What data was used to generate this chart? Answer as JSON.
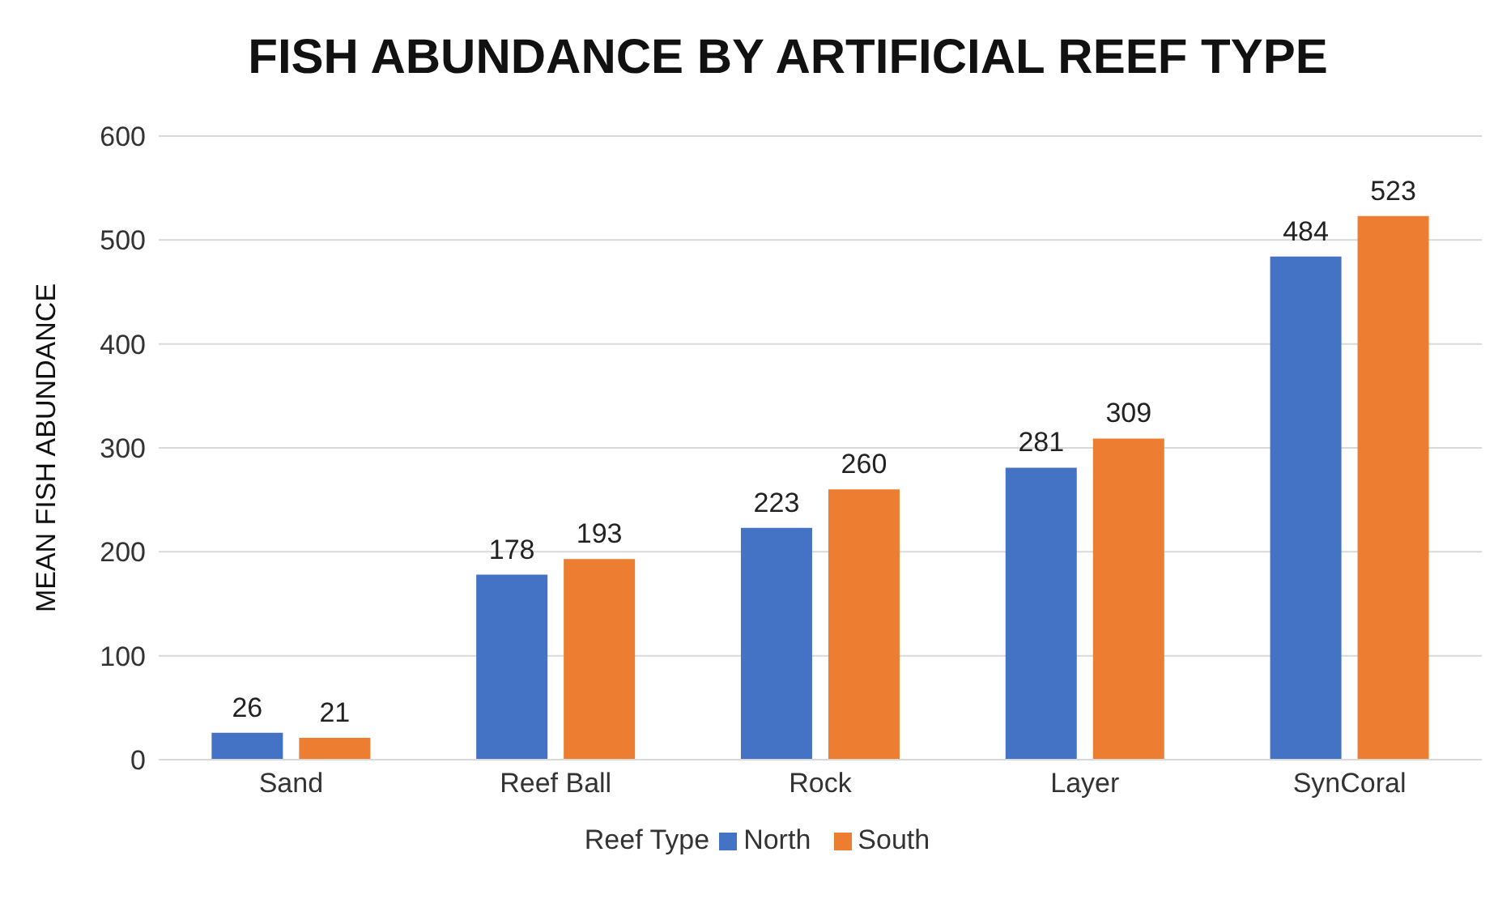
{
  "chart_data": {
    "type": "bar",
    "title": "FISH ABUNDANCE BY ARTIFICIAL REEF TYPE",
    "ylabel": "MEAN FISH ABUNDANCE",
    "legend_title": "Reef Type",
    "categories": [
      "Sand",
      "Reef Ball",
      "Rock",
      "Layer",
      "SynCoral"
    ],
    "series": [
      {
        "name": "North",
        "color": "#4472c4",
        "values": [
          26,
          178,
          223,
          281,
          484
        ]
      },
      {
        "name": "South",
        "color": "#ed7d31",
        "values": [
          21,
          193,
          260,
          309,
          523
        ]
      }
    ],
    "ylim": [
      0,
      600
    ],
    "yticks": [
      0,
      100,
      200,
      300,
      400,
      500,
      600
    ],
    "grid": "y",
    "legend": "bottom",
    "data_labels": true
  }
}
